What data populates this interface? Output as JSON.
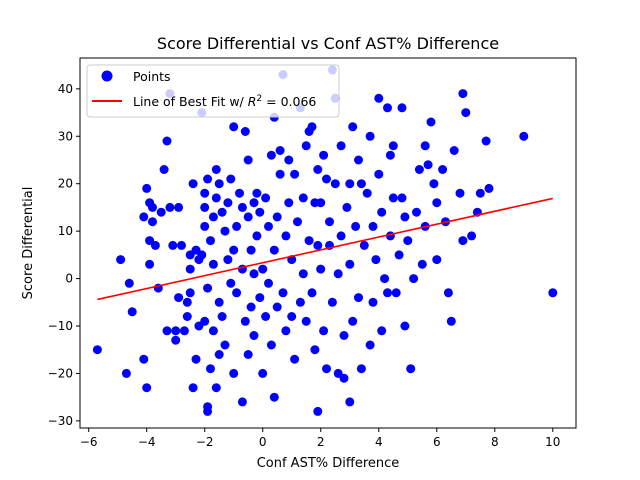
{
  "chart_data": {
    "type": "scatter",
    "title": "Score Differential vs Conf AST% Difference",
    "xlabel": "Conf AST% Difference",
    "ylabel": "Score Differential",
    "xlim": [
      -6.3,
      10.8
    ],
    "ylim": [
      -31.5,
      46.5
    ],
    "xticks": [
      -6,
      -4,
      -2,
      0,
      2,
      4,
      6,
      8,
      10
    ],
    "yticks": [
      -30,
      -20,
      -10,
      0,
      10,
      20,
      30,
      40
    ],
    "grid": false,
    "legend_position": "top-left",
    "legend": {
      "points_label": "Points",
      "line_label_prefix": "Line of Best Fit w/ ",
      "line_label_r2": "R",
      "line_label_suffix": " = 0.066"
    },
    "fit_line": {
      "x": [
        -5.7,
        10.0
      ],
      "y": [
        -4.4,
        16.9
      ],
      "color": "#ff0000"
    },
    "series": [
      {
        "name": "Points",
        "color": "#0000ff",
        "points": [
          [
            -5.7,
            -15
          ],
          [
            -4.9,
            4
          ],
          [
            -4.7,
            -20
          ],
          [
            -4.6,
            -1
          ],
          [
            -4.5,
            -7
          ],
          [
            -4.1,
            -17
          ],
          [
            -4.1,
            13
          ],
          [
            -4.0,
            19
          ],
          [
            -4.0,
            -23
          ],
          [
            -3.9,
            8
          ],
          [
            -3.9,
            16
          ],
          [
            -3.9,
            3
          ],
          [
            -3.8,
            15
          ],
          [
            -3.8,
            12
          ],
          [
            -3.7,
            7
          ],
          [
            -3.6,
            -2
          ],
          [
            -3.5,
            14
          ],
          [
            -3.4,
            23
          ],
          [
            -3.3,
            -11
          ],
          [
            -3.3,
            29
          ],
          [
            -3.2,
            39
          ],
          [
            -3.2,
            15
          ],
          [
            -3.1,
            7
          ],
          [
            -3.0,
            -13
          ],
          [
            -3.0,
            -11
          ],
          [
            -2.9,
            -4
          ],
          [
            -2.9,
            15
          ],
          [
            -2.8,
            7
          ],
          [
            -2.7,
            -11
          ],
          [
            -2.6,
            -5
          ],
          [
            -2.6,
            -8
          ],
          [
            -2.5,
            2
          ],
          [
            -2.5,
            -3
          ],
          [
            -2.5,
            5
          ],
          [
            -2.4,
            20
          ],
          [
            -2.4,
            -23
          ],
          [
            -2.3,
            6
          ],
          [
            -2.3,
            -17
          ],
          [
            -2.2,
            -10
          ],
          [
            -2.2,
            4
          ],
          [
            -2.1,
            35
          ],
          [
            -2.1,
            5
          ],
          [
            -2.0,
            18
          ],
          [
            -2.0,
            11
          ],
          [
            -2.0,
            -9
          ],
          [
            -2.0,
            15
          ],
          [
            -1.9,
            -2
          ],
          [
            -1.9,
            -27
          ],
          [
            -1.9,
            -28
          ],
          [
            -1.9,
            21
          ],
          [
            -1.8,
            8
          ],
          [
            -1.8,
            -19
          ],
          [
            -1.7,
            3
          ],
          [
            -1.7,
            13
          ],
          [
            -1.7,
            -11
          ],
          [
            -1.6,
            23
          ],
          [
            -1.6,
            17
          ],
          [
            -1.6,
            -23
          ],
          [
            -1.5,
            -5
          ],
          [
            -1.5,
            20
          ],
          [
            -1.5,
            -16
          ],
          [
            -1.4,
            14
          ],
          [
            -1.4,
            -8
          ],
          [
            -1.3,
            10
          ],
          [
            -1.3,
            -14
          ],
          [
            -1.2,
            4
          ],
          [
            -1.2,
            16
          ],
          [
            -1.1,
            -1
          ],
          [
            -1.1,
            21
          ],
          [
            -1.0,
            32
          ],
          [
            -1.0,
            -20
          ],
          [
            -1.0,
            6
          ],
          [
            -0.9,
            11
          ],
          [
            -0.9,
            -3
          ],
          [
            -0.8,
            18
          ],
          [
            -0.7,
            15
          ],
          [
            -0.7,
            -26
          ],
          [
            -0.7,
            2
          ],
          [
            -0.6,
            31
          ],
          [
            -0.6,
            -9
          ],
          [
            -0.5,
            25
          ],
          [
            -0.5,
            13
          ],
          [
            -0.5,
            -16
          ],
          [
            -0.4,
            6
          ],
          [
            -0.4,
            -6
          ],
          [
            -0.3,
            16
          ],
          [
            -0.3,
            1
          ],
          [
            -0.3,
            -12
          ],
          [
            -0.2,
            18
          ],
          [
            -0.2,
            9
          ],
          [
            -0.1,
            -4
          ],
          [
            -0.1,
            14
          ],
          [
            0.0,
            -20
          ],
          [
            0.0,
            2
          ],
          [
            0.1,
            17
          ],
          [
            0.1,
            -8
          ],
          [
            0.2,
            11
          ],
          [
            0.2,
            -1
          ],
          [
            0.3,
            26
          ],
          [
            0.3,
            -14
          ],
          [
            0.4,
            6
          ],
          [
            0.4,
            -25
          ],
          [
            0.4,
            34
          ],
          [
            0.5,
            -6
          ],
          [
            0.5,
            13
          ],
          [
            0.6,
            27
          ],
          [
            0.6,
            22
          ],
          [
            0.7,
            43
          ],
          [
            0.7,
            -3
          ],
          [
            0.8,
            9
          ],
          [
            0.8,
            -11
          ],
          [
            0.9,
            25
          ],
          [
            0.9,
            16
          ],
          [
            1.0,
            -8
          ],
          [
            1.0,
            4
          ],
          [
            1.1,
            22
          ],
          [
            1.1,
            -17
          ],
          [
            1.2,
            12
          ],
          [
            1.3,
            36
          ],
          [
            1.3,
            -5
          ],
          [
            1.4,
            17
          ],
          [
            1.4,
            1
          ],
          [
            1.5,
            28
          ],
          [
            1.5,
            -9
          ],
          [
            1.6,
            31
          ],
          [
            1.6,
            8
          ],
          [
            1.7,
            32
          ],
          [
            1.7,
            -3
          ],
          [
            1.8,
            16
          ],
          [
            1.8,
            -15
          ],
          [
            1.9,
            7
          ],
          [
            1.9,
            23
          ],
          [
            1.9,
            -28
          ],
          [
            2.0,
            16
          ],
          [
            2.0,
            2
          ],
          [
            2.1,
            26
          ],
          [
            2.1,
            -11
          ],
          [
            2.2,
            21
          ],
          [
            2.2,
            -19
          ],
          [
            2.3,
            7
          ],
          [
            2.3,
            12
          ],
          [
            2.4,
            44
          ],
          [
            2.4,
            -5
          ],
          [
            2.5,
            38
          ],
          [
            2.5,
            20
          ],
          [
            2.6,
            1
          ],
          [
            2.6,
            -20
          ],
          [
            2.7,
            28
          ],
          [
            2.7,
            9
          ],
          [
            2.8,
            -12
          ],
          [
            2.8,
            -21
          ],
          [
            2.9,
            15
          ],
          [
            3.0,
            3
          ],
          [
            3.0,
            20
          ],
          [
            3.0,
            -26
          ],
          [
            3.1,
            32
          ],
          [
            3.1,
            -9
          ],
          [
            3.2,
            11
          ],
          [
            3.3,
            25
          ],
          [
            3.3,
            -4
          ],
          [
            3.4,
            20
          ],
          [
            3.4,
            -19
          ],
          [
            3.5,
            7
          ],
          [
            3.6,
            18
          ],
          [
            3.7,
            30
          ],
          [
            3.7,
            -14
          ],
          [
            3.8,
            11
          ],
          [
            3.8,
            -5
          ],
          [
            3.9,
            4
          ],
          [
            4.0,
            38
          ],
          [
            4.0,
            22
          ],
          [
            4.1,
            14
          ],
          [
            4.1,
            -11
          ],
          [
            4.2,
            0
          ],
          [
            4.3,
            36
          ],
          [
            4.3,
            -3
          ],
          [
            4.4,
            26
          ],
          [
            4.4,
            9
          ],
          [
            4.5,
            28
          ],
          [
            4.5,
            17
          ],
          [
            4.6,
            -3
          ],
          [
            4.7,
            5
          ],
          [
            4.8,
            36
          ],
          [
            4.8,
            17
          ],
          [
            4.9,
            13
          ],
          [
            4.9,
            -10
          ],
          [
            5.0,
            8
          ],
          [
            5.1,
            -19
          ],
          [
            5.2,
            0
          ],
          [
            5.3,
            14
          ],
          [
            5.4,
            23
          ],
          [
            5.5,
            3
          ],
          [
            5.6,
            28
          ],
          [
            5.6,
            11
          ],
          [
            5.7,
            24
          ],
          [
            5.8,
            33
          ],
          [
            5.9,
            20
          ],
          [
            6.0,
            4
          ],
          [
            6.0,
            16
          ],
          [
            6.2,
            23
          ],
          [
            6.3,
            12
          ],
          [
            6.4,
            -3
          ],
          [
            6.5,
            -9
          ],
          [
            6.6,
            27
          ],
          [
            6.8,
            18
          ],
          [
            6.9,
            39
          ],
          [
            6.9,
            8
          ],
          [
            7.0,
            35
          ],
          [
            7.2,
            9
          ],
          [
            7.4,
            14
          ],
          [
            7.5,
            18
          ],
          [
            7.7,
            29
          ],
          [
            7.8,
            19
          ],
          [
            9.0,
            30
          ],
          [
            10.0,
            -3
          ]
        ]
      }
    ]
  }
}
